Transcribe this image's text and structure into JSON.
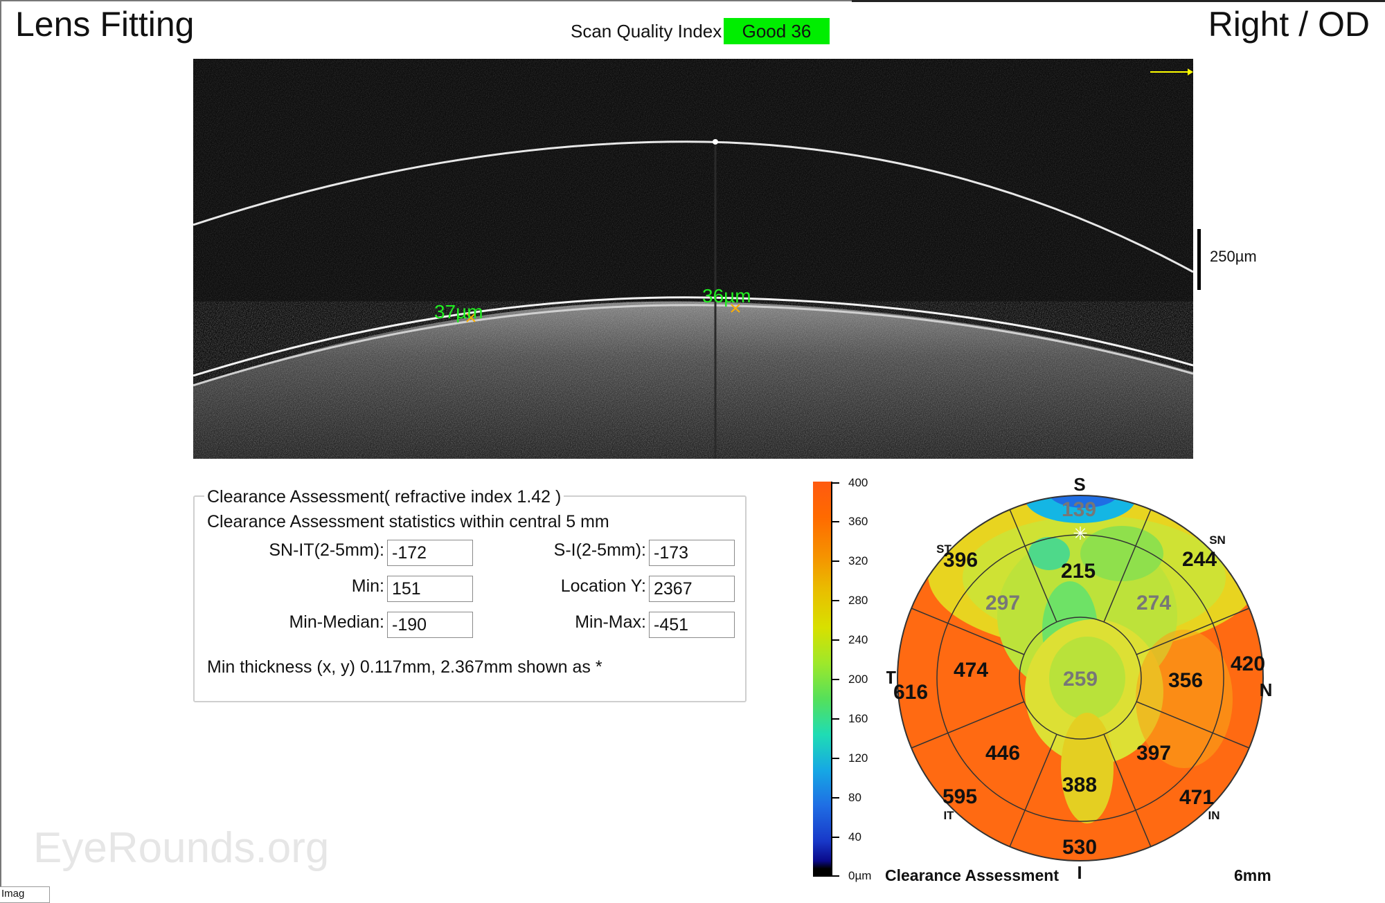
{
  "header": {
    "title": "Lens Fitting",
    "eye": "Right / OD",
    "scan_quality_label": "Scan Quality Index",
    "scan_quality_value": "Good  36",
    "scan_quality_color": "#00ee00"
  },
  "scan": {
    "measurements": [
      "37µm",
      "36µm"
    ],
    "scale_label": "250µm",
    "marker_color": "#ffff00",
    "measurement_color": "#22ee22"
  },
  "panel": {
    "title": "Clearance Assessment( refractive index  1.42 )",
    "subtitle": "Clearance Assessment statistics within central 5 mm",
    "fields": {
      "sn_it": {
        "label": "SN-IT(2-5mm):",
        "value": "-172"
      },
      "s_i": {
        "label": "S-I(2-5mm):",
        "value": "-173"
      },
      "min": {
        "label": "Min:",
        "value": "151"
      },
      "location_y": {
        "label": "Location Y:",
        "value": "2367"
      },
      "min_median": {
        "label": "Min-Median:",
        "value": "-190"
      },
      "min_max": {
        "label": "Min-Max:",
        "value": "-451"
      }
    },
    "note": "Min thickness (x, y) 0.117mm, 2.367mm shown as *"
  },
  "colorscale": {
    "ticks": [
      "400",
      "360",
      "320",
      "280",
      "240",
      "200",
      "160",
      "120",
      "80",
      "40",
      "0µm"
    ]
  },
  "map": {
    "caption": "Clearance Assessment",
    "scale": "6mm",
    "directions": {
      "S": "S",
      "I": "I",
      "T": "T",
      "N": "N",
      "SN": "SN",
      "ST": "ST",
      "IT": "IT",
      "IN": "IN"
    },
    "sector_values": {
      "center": "259",
      "inner_s": "215",
      "inner_sn": "274",
      "inner_n": "356",
      "inner_in": "397",
      "inner_i": "388",
      "inner_it": "446",
      "inner_t": "474",
      "inner_st": "297",
      "outer_s": "139",
      "outer_sn": "244",
      "outer_n": "420",
      "outer_in": "471",
      "outer_i": "530",
      "outer_it": "595",
      "outer_t": "616",
      "outer_st": "396"
    }
  },
  "watermark": "EyeRounds.org",
  "corner_tab": "Imag"
}
